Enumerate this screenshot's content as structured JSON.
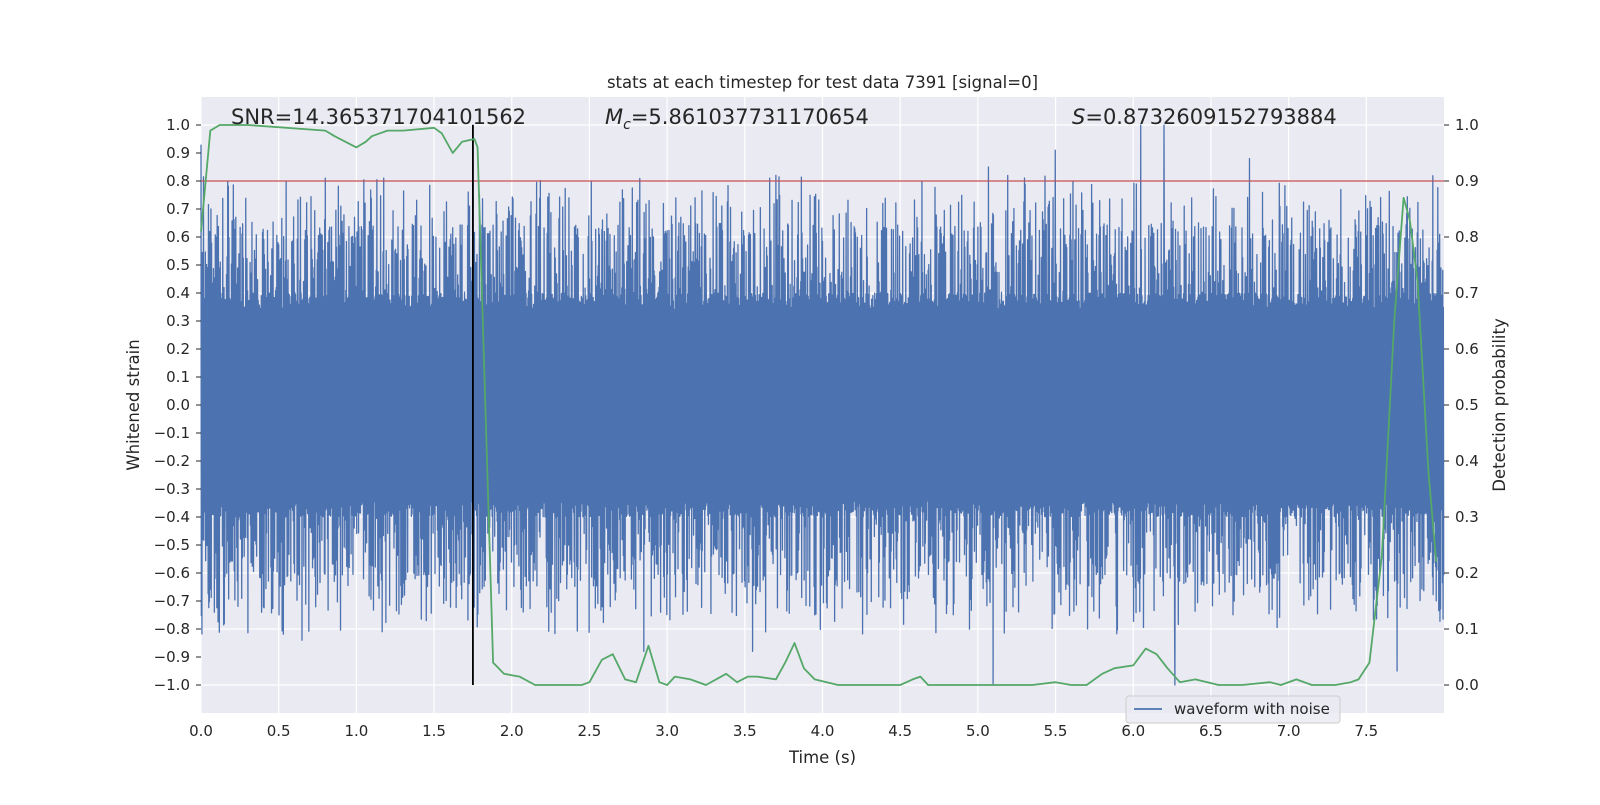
{
  "chart_data": {
    "type": "line",
    "title": "stats at each timestep for test data 7391 [signal=0]",
    "xlabel": "Time (s)",
    "ylabel": "Whitened strain",
    "ylabel_right": "Detection probability",
    "xlim": [
      0.0,
      8.0
    ],
    "ylim": [
      -1.1,
      1.1
    ],
    "ylim_right": [
      -0.05,
      1.05
    ],
    "x_ticks": [
      0.0,
      0.5,
      1.0,
      1.5,
      2.0,
      2.5,
      3.0,
      3.5,
      4.0,
      4.5,
      5.0,
      5.5,
      6.0,
      6.5,
      7.0,
      7.5
    ],
    "x_tick_labels": [
      "0.0",
      "0.5",
      "1.0",
      "1.5",
      "2.0",
      "2.5",
      "3.0",
      "3.5",
      "4.0",
      "4.5",
      "5.0",
      "5.5",
      "6.0",
      "6.5",
      "7.0",
      "7.5"
    ],
    "y_ticks": [
      1.0,
      0.9,
      0.8,
      0.7,
      0.6,
      0.5,
      0.4,
      0.3,
      0.2,
      0.1,
      0.0,
      -0.1,
      -0.2,
      -0.3,
      -0.4,
      -0.5,
      -0.6,
      -0.7,
      -0.8,
      -0.9,
      -1.0
    ],
    "y_tick_labels": [
      "1.0",
      "0.9",
      "0.8",
      "0.7",
      "0.6",
      "0.5",
      "0.4",
      "0.3",
      "0.2",
      "0.1",
      "0.0",
      "−0.1",
      "−0.2",
      "−0.3",
      "−0.4",
      "−0.5",
      "−0.6",
      "−0.7",
      "−0.8",
      "−0.9",
      "−1.0"
    ],
    "y_ticks_right": [
      1.0,
      0.9,
      0.8,
      0.7,
      0.6,
      0.5,
      0.4,
      0.3,
      0.2,
      0.1,
      0.0
    ],
    "y_tick_labels_right": [
      "1.0",
      "0.9",
      "0.8",
      "0.7",
      "0.6",
      "0.5",
      "0.4",
      "0.3",
      "0.2",
      "0.1",
      "0.0"
    ],
    "grid": true,
    "annotations": {
      "snr": "SNR=14.365371704101562",
      "mc_symbol": "M",
      "mc_sub": "c",
      "mc_value": "=5.861037731170654",
      "s_symbol": "S",
      "s_value": "=0.8732609152793884"
    },
    "threshold": {
      "value": 0.9,
      "axis": "right",
      "color": "#c44e52"
    },
    "marker": {
      "x": 1.75,
      "y_from": -1.0,
      "y_to": 1.0,
      "color": "#000000"
    },
    "legend": {
      "entries": [
        "waveform with noise"
      ],
      "placement": "lower-right"
    },
    "series": [
      {
        "name": "waveform with noise",
        "color": "#4c72b0",
        "style": "dense-noise",
        "typical_range": [
          -0.4,
          0.4
        ],
        "spike_range": [
          -1.0,
          1.0
        ],
        "peaks": [
          {
            "x": 0.0,
            "y": 0.93
          },
          {
            "x": 0.8,
            "y": 0.81
          },
          {
            "x": 1.75,
            "y": 1.0
          },
          {
            "x": 3.7,
            "y": 0.82
          },
          {
            "x": 5.07,
            "y": 0.85
          },
          {
            "x": 5.5,
            "y": 0.91
          },
          {
            "x": 6.05,
            "y": 1.0
          },
          {
            "x": 6.2,
            "y": 1.0
          },
          {
            "x": 6.75,
            "y": 0.88
          },
          {
            "x": 0.65,
            "y": -0.84
          },
          {
            "x": 1.45,
            "y": -0.77
          },
          {
            "x": 2.85,
            "y": -0.88
          },
          {
            "x": 3.55,
            "y": -0.88
          },
          {
            "x": 5.1,
            "y": -1.0
          },
          {
            "x": 6.27,
            "y": -1.0
          },
          {
            "x": 7.7,
            "y": -0.95
          }
        ]
      },
      {
        "name": "detection probability",
        "color": "#55a868",
        "axis": "right",
        "x": [
          0.0,
          0.02,
          0.06,
          0.12,
          0.3,
          0.8,
          0.86,
          1.0,
          1.06,
          1.1,
          1.2,
          1.3,
          1.5,
          1.55,
          1.62,
          1.68,
          1.76,
          1.78,
          1.88,
          1.95,
          2.05,
          2.15,
          2.3,
          2.45,
          2.5,
          2.58,
          2.65,
          2.73,
          2.8,
          2.88,
          2.95,
          3.0,
          3.05,
          3.15,
          3.25,
          3.38,
          3.45,
          3.52,
          3.58,
          3.7,
          3.76,
          3.82,
          3.88,
          3.95,
          4.1,
          4.3,
          4.5,
          4.58,
          4.63,
          4.68,
          4.8,
          5.0,
          5.2,
          5.35,
          5.5,
          5.6,
          5.7,
          5.8,
          5.88,
          6.0,
          6.08,
          6.15,
          6.22,
          6.3,
          6.4,
          6.55,
          6.7,
          6.88,
          6.95,
          7.05,
          7.15,
          7.3,
          7.4,
          7.45,
          7.52,
          7.6,
          7.68,
          7.74,
          7.78,
          7.83,
          7.9,
          7.95
        ],
        "y": [
          0.81,
          0.87,
          0.99,
          1.0,
          1.0,
          0.99,
          0.98,
          0.96,
          0.97,
          0.98,
          0.99,
          0.99,
          0.995,
          0.985,
          0.95,
          0.97,
          0.975,
          0.96,
          0.04,
          0.02,
          0.015,
          0.0,
          0.0,
          0.0,
          0.005,
          0.045,
          0.055,
          0.01,
          0.005,
          0.07,
          0.005,
          0.0,
          0.015,
          0.01,
          0.0,
          0.02,
          0.005,
          0.015,
          0.015,
          0.01,
          0.04,
          0.075,
          0.03,
          0.01,
          0.0,
          0.0,
          0.0,
          0.01,
          0.015,
          0.0,
          0.0,
          0.0,
          0.0,
          0.0,
          0.005,
          0.0,
          0.0,
          0.02,
          0.03,
          0.035,
          0.065,
          0.055,
          0.03,
          0.005,
          0.01,
          0.0,
          0.0,
          0.005,
          0.0,
          0.01,
          0.0,
          0.0,
          0.005,
          0.01,
          0.04,
          0.23,
          0.65,
          0.87,
          0.83,
          0.72,
          0.38,
          0.22
        ]
      }
    ]
  }
}
